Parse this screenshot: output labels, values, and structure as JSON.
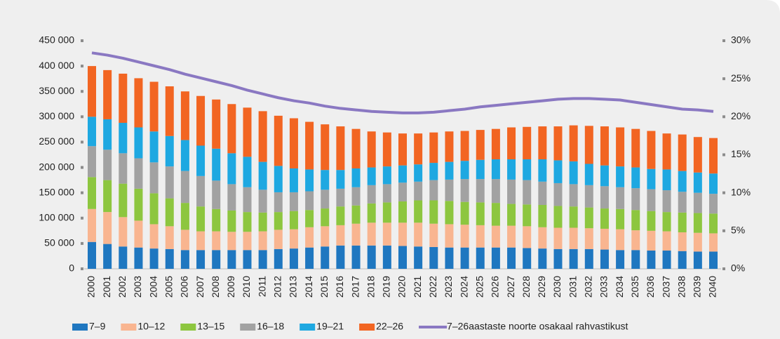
{
  "chart_data": {
    "type": "bar",
    "stacked": true,
    "categories": [
      "2000",
      "2001",
      "2002",
      "2003",
      "2004",
      "2005",
      "2006",
      "2007",
      "2008",
      "2009",
      "2010",
      "2011",
      "2012",
      "2013",
      "2014",
      "2015",
      "2016",
      "2017",
      "2018",
      "2019",
      "2020",
      "2021",
      "2022",
      "2023",
      "2024",
      "2025",
      "2026",
      "2027",
      "2028",
      "2029",
      "2030",
      "2031",
      "2032",
      "2033",
      "2034",
      "2035",
      "2036",
      "2037",
      "2038",
      "2039",
      "2040"
    ],
    "series": [
      {
        "name": "7–9",
        "color": "#1f77c0",
        "values": [
          53000,
          49000,
          44000,
          42000,
          40000,
          39000,
          37000,
          37000,
          37000,
          37000,
          37000,
          37000,
          39000,
          40000,
          42000,
          44000,
          46000,
          46000,
          46000,
          46000,
          45000,
          44000,
          43000,
          42000,
          42000,
          42000,
          42000,
          42000,
          41000,
          40000,
          39000,
          39000,
          39000,
          38000,
          37000,
          37000,
          36000,
          36000,
          35000,
          34000,
          34000
        ]
      },
      {
        "name": "10–12",
        "color": "#f9b590",
        "values": [
          65000,
          63000,
          58000,
          53000,
          48000,
          45000,
          40000,
          37000,
          37000,
          36000,
          36000,
          37000,
          38000,
          38000,
          40000,
          40000,
          40000,
          43000,
          45000,
          45000,
          46000,
          47000,
          46000,
          46000,
          45000,
          44000,
          43000,
          43000,
          43000,
          42000,
          42000,
          42000,
          41000,
          41000,
          41000,
          39000,
          39000,
          38000,
          37000,
          37000,
          36000
        ]
      },
      {
        "name": "13–15",
        "color": "#8dc63f",
        "values": [
          63000,
          63000,
          66000,
          63000,
          61000,
          55000,
          53000,
          49000,
          44000,
          42000,
          39000,
          37000,
          35000,
          36000,
          34000,
          35000,
          37000,
          36000,
          38000,
          40000,
          42000,
          44000,
          46000,
          46000,
          45000,
          45000,
          45000,
          43000,
          43000,
          44000,
          43000,
          42000,
          41000,
          40000,
          40000,
          40000,
          39000,
          38000,
          39000,
          39000,
          39000
        ]
      },
      {
        "name": "16–18",
        "color": "#a2a2a2",
        "values": [
          61000,
          60000,
          60000,
          60000,
          61000,
          63000,
          63000,
          60000,
          56000,
          52000,
          49000,
          45000,
          39000,
          37000,
          37000,
          37000,
          35000,
          36000,
          36000,
          36000,
          37000,
          37000,
          40000,
          42000,
          45000,
          46000,
          47000,
          48000,
          48000,
          46000,
          45000,
          44000,
          44000,
          44000,
          43000,
          43000,
          43000,
          43000,
          41000,
          40000,
          39000
        ]
      },
      {
        "name": "19–21",
        "color": "#1ea8e1",
        "values": [
          58000,
          60000,
          60000,
          61000,
          61000,
          60000,
          61000,
          60000,
          63000,
          61000,
          60000,
          55000,
          52000,
          47000,
          43000,
          39000,
          37000,
          37000,
          35000,
          35000,
          34000,
          34000,
          34000,
          35000,
          36000,
          38000,
          39000,
          40000,
          41000,
          44000,
          45000,
          45000,
          42000,
          41000,
          41000,
          41000,
          40000,
          41000,
          41000,
          40000,
          40000
        ]
      },
      {
        "name": "22–26",
        "color": "#f26522",
        "values": [
          100000,
          97000,
          97000,
          97000,
          98000,
          98000,
          96000,
          98000,
          97000,
          97000,
          97000,
          100000,
          99000,
          99000,
          94000,
          90000,
          86000,
          78000,
          71000,
          67000,
          63000,
          61000,
          60000,
          60000,
          59000,
          59000,
          60000,
          63000,
          64000,
          65000,
          67000,
          71000,
          75000,
          77000,
          77000,
          76000,
          75000,
          71000,
          72000,
          70000,
          70000
        ]
      },
      {
        "name": "7–26aastaste noorte osakaal rahvastikust",
        "type": "line",
        "axis": "y2",
        "color": "#8a78c2",
        "values": [
          28.4,
          28.1,
          27.7,
          27.2,
          26.7,
          26.2,
          25.6,
          25.1,
          24.6,
          24.1,
          23.5,
          23.0,
          22.5,
          22.1,
          21.8,
          21.4,
          21.1,
          20.9,
          20.7,
          20.6,
          20.5,
          20.5,
          20.6,
          20.8,
          21.0,
          21.3,
          21.5,
          21.7,
          21.9,
          22.1,
          22.3,
          22.4,
          22.4,
          22.3,
          22.2,
          21.9,
          21.6,
          21.3,
          21.0,
          20.9,
          20.7
        ]
      }
    ],
    "ylim": [
      0,
      450000
    ],
    "yticks": [
      0,
      {
        "value": 50000,
        "label": "50 000"
      },
      {
        "value": 100000,
        "label": "100 000"
      },
      {
        "value": 150000,
        "label": "150 000"
      },
      {
        "value": 200000,
        "label": "200 000"
      },
      {
        "value": 250000,
        "label": "250 000"
      },
      {
        "value": 300000,
        "label": "300 000"
      },
      {
        "value": 350000,
        "label": "350 000"
      },
      {
        "value": 400000,
        "label": "400 000"
      },
      {
        "value": 450000,
        "label": "450 000"
      }
    ],
    "y2lim": [
      0,
      30
    ],
    "y2ticks": [
      {
        "value": 0,
        "label": "0%"
      },
      {
        "value": 5,
        "label": "5%"
      },
      {
        "value": 10,
        "label": "10%"
      },
      {
        "value": 15,
        "label": "15%"
      },
      {
        "value": 20,
        "label": "20%"
      },
      {
        "value": 25,
        "label": "25%"
      },
      {
        "value": 30,
        "label": "30%"
      }
    ],
    "legend": "bottom"
  }
}
